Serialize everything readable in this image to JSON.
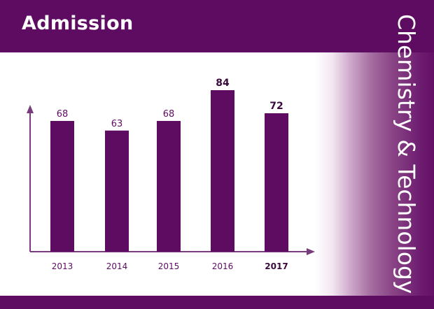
{
  "header": {
    "title": "Admission"
  },
  "side_label": "Chemistry & Technology",
  "colors": {
    "brand_purple": "#5e0b62",
    "bar": "#5e0b62",
    "axis": "#7a3a7e"
  },
  "chart_data": {
    "type": "bar",
    "title": "",
    "xlabel": "",
    "ylabel": "",
    "categories": [
      "2013",
      "2014",
      "2015",
      "2016",
      "2017"
    ],
    "values": [
      68,
      63,
      68,
      84,
      72
    ],
    "value_labels": [
      "68",
      "63",
      "68",
      "84",
      "72"
    ],
    "highlighted": [
      "2016",
      "2017"
    ],
    "ylim": [
      0,
      100
    ],
    "grid": false,
    "legend": "none"
  }
}
